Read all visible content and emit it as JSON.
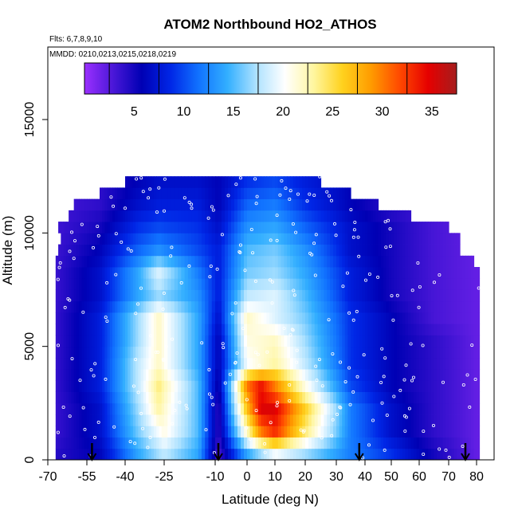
{
  "chart_data": {
    "type": "heatmap",
    "title": "ATOM2 Northbound HO2_ATHOS",
    "subtitle_flights": "Flts: 6,7,8,9,10",
    "subtitle_dates": "MMDD: 0210,0213,0215,0218,0219",
    "xlabel": "Latitude (deg N)",
    "ylabel": "Altitude (m)",
    "xlim": [
      -70,
      85
    ],
    "ylim": [
      0,
      17500
    ],
    "x_ticks": [
      -70,
      -55,
      -40,
      -25,
      -10,
      0,
      10,
      20,
      30,
      40,
      50,
      60,
      70,
      80
    ],
    "y_ticks": [
      0,
      5000,
      10000,
      15000
    ],
    "colorbar": {
      "min": 0,
      "max": 37.5,
      "ticks": [
        5,
        10,
        15,
        20,
        25,
        30,
        35
      ],
      "colors": [
        "#9b30ff",
        "#4a17d8",
        "#0000b4",
        "#0026e6",
        "#1173ff",
        "#33afff",
        "#aee2ff",
        "#ffffff",
        "#fff6a0",
        "#ffd21e",
        "#ff9c00",
        "#ff4a00",
        "#e60000",
        "#a51d1d"
      ]
    },
    "altitude_bins_m": [
      0,
      500,
      1000,
      1500,
      2000,
      2500,
      3000,
      3500,
      4000,
      4500,
      5000,
      5500,
      6000,
      6500,
      7000,
      7500,
      8000,
      8500,
      9000,
      9500,
      10000,
      10500,
      11000,
      11500,
      12000
    ],
    "latitude_range_by_bin": [
      [
        -67,
        81
      ],
      [
        -67,
        81
      ],
      [
        -67,
        81
      ],
      [
        -67,
        81
      ],
      [
        -67,
        81
      ],
      [
        -67,
        81
      ],
      [
        -67,
        81
      ],
      [
        -67,
        81
      ],
      [
        -67,
        81
      ],
      [
        -67,
        81
      ],
      [
        -67,
        81
      ],
      [
        -67,
        81
      ],
      [
        -67,
        81
      ],
      [
        -67,
        81
      ],
      [
        -67,
        81
      ],
      [
        -67,
        81
      ],
      [
        -67,
        81
      ],
      [
        -67,
        79
      ],
      [
        -66,
        74
      ],
      [
        -65,
        74
      ],
      [
        -66,
        70
      ],
      [
        -62,
        57
      ],
      [
        -60,
        45
      ],
      [
        -50,
        35
      ],
      [
        -40,
        25
      ]
    ],
    "ho2_profile_points": [
      {
        "alt": 250,
        "points": [
          [
            -70,
            4
          ],
          [
            -50,
            6
          ],
          [
            -35,
            14
          ],
          [
            -25,
            18
          ],
          [
            -15,
            14
          ],
          [
            -9,
            3
          ],
          [
            0,
            14
          ],
          [
            10,
            20
          ],
          [
            20,
            17
          ],
          [
            35,
            12
          ],
          [
            50,
            9
          ],
          [
            65,
            5
          ],
          [
            80,
            2
          ]
        ]
      },
      {
        "alt": 1250,
        "points": [
          [
            -70,
            3
          ],
          [
            -50,
            7
          ],
          [
            -35,
            16
          ],
          [
            -25,
            21
          ],
          [
            -15,
            15
          ],
          [
            -9,
            4
          ],
          [
            0,
            22
          ],
          [
            5,
            30
          ],
          [
            10,
            33
          ],
          [
            20,
            24
          ],
          [
            35,
            12
          ],
          [
            50,
            7
          ],
          [
            65,
            4
          ],
          [
            80,
            2
          ]
        ]
      },
      {
        "alt": 2250,
        "points": [
          [
            -70,
            3
          ],
          [
            -50,
            7
          ],
          [
            -35,
            17
          ],
          [
            -27,
            23
          ],
          [
            -15,
            15
          ],
          [
            -9,
            4
          ],
          [
            0,
            27
          ],
          [
            5,
            35
          ],
          [
            10,
            35
          ],
          [
            20,
            26
          ],
          [
            35,
            12
          ],
          [
            50,
            7
          ],
          [
            65,
            4
          ],
          [
            80,
            2
          ]
        ]
      },
      {
        "alt": 3250,
        "points": [
          [
            -70,
            3
          ],
          [
            -50,
            8
          ],
          [
            -35,
            18
          ],
          [
            -27,
            24
          ],
          [
            -15,
            15
          ],
          [
            -9,
            5
          ],
          [
            0,
            30
          ],
          [
            5,
            34
          ],
          [
            10,
            30
          ],
          [
            20,
            21
          ],
          [
            35,
            10
          ],
          [
            50,
            6
          ],
          [
            65,
            4
          ],
          [
            80,
            2
          ]
        ]
      },
      {
        "alt": 4250,
        "points": [
          [
            -70,
            3
          ],
          [
            -50,
            8
          ],
          [
            -35,
            18
          ],
          [
            -27,
            22
          ],
          [
            -15,
            14
          ],
          [
            -9,
            6
          ],
          [
            0,
            20
          ],
          [
            10,
            23
          ],
          [
            20,
            18
          ],
          [
            35,
            9
          ],
          [
            50,
            6
          ],
          [
            65,
            4
          ],
          [
            80,
            2
          ]
        ]
      },
      {
        "alt": 5250,
        "points": [
          [
            -70,
            3
          ],
          [
            -50,
            8
          ],
          [
            -35,
            17
          ],
          [
            -27,
            22
          ],
          [
            -15,
            14
          ],
          [
            -9,
            6
          ],
          [
            0,
            21
          ],
          [
            10,
            22
          ],
          [
            20,
            17
          ],
          [
            35,
            9
          ],
          [
            50,
            6
          ],
          [
            65,
            4
          ],
          [
            80,
            2
          ]
        ]
      },
      {
        "alt": 6250,
        "points": [
          [
            -70,
            3
          ],
          [
            -50,
            8
          ],
          [
            -35,
            17
          ],
          [
            -27,
            22
          ],
          [
            -15,
            14
          ],
          [
            -9,
            7
          ],
          [
            0,
            22
          ],
          [
            10,
            19
          ],
          [
            20,
            16
          ],
          [
            35,
            9
          ],
          [
            50,
            6
          ],
          [
            65,
            3
          ],
          [
            80,
            2
          ]
        ]
      },
      {
        "alt": 7250,
        "points": [
          [
            -70,
            3
          ],
          [
            -50,
            7
          ],
          [
            -35,
            14
          ],
          [
            -27,
            17
          ],
          [
            -15,
            13
          ],
          [
            -9,
            8
          ],
          [
            0,
            18
          ],
          [
            10,
            19
          ],
          [
            20,
            15
          ],
          [
            35,
            8
          ],
          [
            50,
            5
          ],
          [
            65,
            3
          ],
          [
            80,
            2
          ]
        ]
      },
      {
        "alt": 8250,
        "points": [
          [
            -70,
            3
          ],
          [
            -50,
            7
          ],
          [
            -35,
            14
          ],
          [
            -27,
            19
          ],
          [
            -15,
            12
          ],
          [
            -9,
            8
          ],
          [
            0,
            16
          ],
          [
            10,
            17
          ],
          [
            20,
            14
          ],
          [
            35,
            8
          ],
          [
            50,
            5
          ],
          [
            65,
            3
          ],
          [
            80,
            2
          ]
        ]
      },
      {
        "alt": 9250,
        "points": [
          [
            -70,
            3
          ],
          [
            -50,
            6
          ],
          [
            -35,
            11
          ],
          [
            -27,
            13
          ],
          [
            -15,
            10
          ],
          [
            -9,
            8
          ],
          [
            0,
            15
          ],
          [
            10,
            16
          ],
          [
            20,
            13
          ],
          [
            35,
            7
          ],
          [
            50,
            5
          ],
          [
            65,
            3
          ],
          [
            80,
            2
          ]
        ]
      },
      {
        "alt": 10250,
        "points": [
          [
            -70,
            3
          ],
          [
            -50,
            5
          ],
          [
            -35,
            9
          ],
          [
            -27,
            10
          ],
          [
            -15,
            9
          ],
          [
            -9,
            7
          ],
          [
            0,
            13
          ],
          [
            10,
            14
          ],
          [
            20,
            11
          ],
          [
            35,
            7
          ],
          [
            50,
            5
          ],
          [
            65,
            3
          ],
          [
            80,
            2
          ]
        ]
      },
      {
        "alt": 11250,
        "points": [
          [
            -70,
            3
          ],
          [
            -50,
            4
          ],
          [
            -35,
            7
          ],
          [
            -27,
            8
          ],
          [
            -15,
            8
          ],
          [
            -9,
            6
          ],
          [
            0,
            11
          ],
          [
            10,
            12
          ],
          [
            20,
            9
          ],
          [
            35,
            6
          ],
          [
            50,
            4
          ],
          [
            65,
            3
          ],
          [
            80,
            2
          ]
        ]
      },
      {
        "alt": 12250,
        "points": [
          [
            -70,
            3
          ],
          [
            -50,
            4
          ],
          [
            -35,
            6
          ],
          [
            -27,
            7
          ],
          [
            -15,
            7
          ],
          [
            -9,
            6
          ],
          [
            0,
            9
          ],
          [
            10,
            10
          ],
          [
            20,
            8
          ],
          [
            35,
            6
          ],
          [
            50,
            4
          ],
          [
            65,
            3
          ],
          [
            80,
            2
          ]
        ]
      }
    ],
    "arrow_latitudes": [
      -53,
      -9,
      38,
      76
    ],
    "grid": false
  }
}
